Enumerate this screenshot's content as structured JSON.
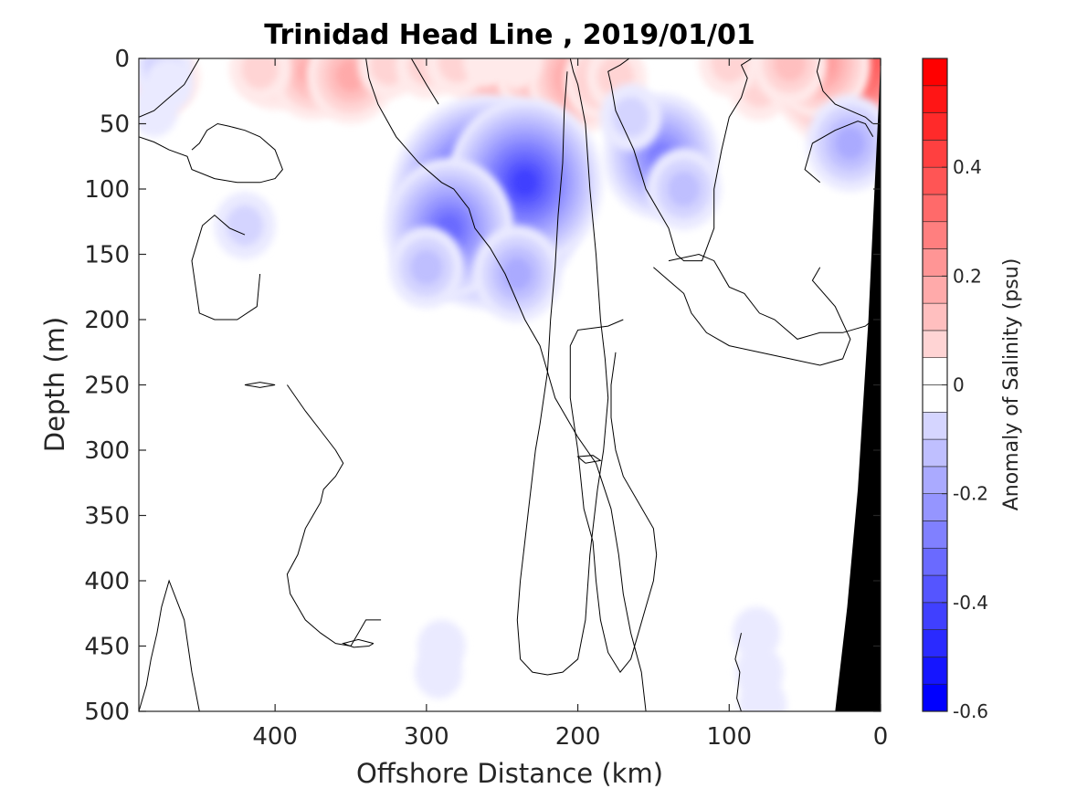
{
  "chart_data": {
    "type": "heatmap",
    "title": "Trinidad Head Line , 2019/01/01",
    "xlabel": "Offshore Distance (km)",
    "ylabel": "Depth (m)",
    "xlim": [
      490,
      0
    ],
    "ylim": [
      500,
      0
    ],
    "x_ticks": [
      "400",
      "300",
      "200",
      "100",
      "0"
    ],
    "y_ticks": [
      "0",
      "50",
      "100",
      "150",
      "200",
      "250",
      "300",
      "350",
      "400",
      "450",
      "500"
    ],
    "colorbar": {
      "label": "Anomaly of Salinity (psu)",
      "range": [
        -0.6,
        0.6
      ],
      "step": 0.05,
      "ticks": [
        "0.4",
        "0.2",
        "0",
        "-0.2",
        "-0.4",
        "-0.6"
      ],
      "positive_color": "#ff0000",
      "negative_color": "#0000ff",
      "zero_color": "#ffffff"
    },
    "features": [
      {
        "kind": "positive",
        "x": 255,
        "y": 10,
        "value": 0.2
      },
      {
        "kind": "positive",
        "x": 225,
        "y": 12,
        "value": 0.2
      },
      {
        "kind": "positive",
        "x": 200,
        "y": 15,
        "value": 0.25
      },
      {
        "kind": "positive",
        "x": 400,
        "y": 8,
        "value": 0.15
      },
      {
        "kind": "positive",
        "x": 375,
        "y": 10,
        "value": 0.18
      },
      {
        "kind": "positive",
        "x": 350,
        "y": 13,
        "value": 0.22
      },
      {
        "kind": "positive",
        "x": 325,
        "y": 5,
        "value": 0.08
      },
      {
        "kind": "positive",
        "x": 300,
        "y": 5,
        "value": 0.08
      },
      {
        "kind": "positive",
        "x": 280,
        "y": 3,
        "value": 0.08
      },
      {
        "kind": "positive",
        "x": 260,
        "y": 2,
        "value": 0.06
      },
      {
        "kind": "positive",
        "x": 240,
        "y": 3,
        "value": 0.06
      },
      {
        "kind": "positive",
        "x": 410,
        "y": 8,
        "value": 0.12
      },
      {
        "kind": "positive",
        "x": 480,
        "y": 18,
        "value": 0.15
      },
      {
        "kind": "positive",
        "x": 470,
        "y": 15,
        "value": 0.12
      },
      {
        "kind": "positive",
        "x": 185,
        "y": 16,
        "value": 0.15
      },
      {
        "kind": "positive",
        "x": 175,
        "y": 14,
        "value": 0.12
      },
      {
        "kind": "positive",
        "x": 45,
        "y": 12,
        "value": 0.2
      },
      {
        "kind": "positive",
        "x": 55,
        "y": 9,
        "value": 0.15
      },
      {
        "kind": "positive",
        "x": 80,
        "y": 22,
        "value": 0.1
      },
      {
        "kind": "positive",
        "x": 100,
        "y": 3,
        "value": 0.08
      },
      {
        "kind": "positive",
        "x": 20,
        "y": 0,
        "value": 0.5
      },
      {
        "kind": "positive",
        "x": 40,
        "y": 4,
        "value": 0.25
      },
      {
        "kind": "positive",
        "x": 60,
        "y": 4,
        "value": 0.15
      },
      {
        "kind": "negative",
        "x": 260,
        "y": 110,
        "value": -0.58
      },
      {
        "kind": "negative",
        "x": 235,
        "y": 95,
        "value": -0.45
      },
      {
        "kind": "negative",
        "x": 285,
        "y": 130,
        "value": -0.35
      },
      {
        "kind": "negative",
        "x": 240,
        "y": 165,
        "value": -0.2
      },
      {
        "kind": "negative",
        "x": 300,
        "y": 160,
        "value": -0.15
      },
      {
        "kind": "negative",
        "x": 145,
        "y": 75,
        "value": -0.32
      },
      {
        "kind": "negative",
        "x": 130,
        "y": 100,
        "value": -0.15
      },
      {
        "kind": "negative",
        "x": 165,
        "y": 45,
        "value": -0.12
      },
      {
        "kind": "negative",
        "x": 20,
        "y": 65,
        "value": -0.2
      },
      {
        "kind": "negative",
        "x": 475,
        "y": 5,
        "value": -0.08
      },
      {
        "kind": "negative",
        "x": 480,
        "y": 40,
        "value": -0.06
      },
      {
        "kind": "negative",
        "x": 470,
        "y": 20,
        "value": -0.05
      },
      {
        "kind": "negative",
        "x": 80,
        "y": 470,
        "value": -0.07
      },
      {
        "kind": "negative",
        "x": 82,
        "y": 440,
        "value": -0.07
      },
      {
        "kind": "negative",
        "x": 78,
        "y": 495,
        "value": -0.07
      },
      {
        "kind": "negative",
        "x": 290,
        "y": 450,
        "value": -0.07
      },
      {
        "kind": "negative",
        "x": 292,
        "y": 470,
        "value": -0.06
      },
      {
        "kind": "negative",
        "x": 420,
        "y": 128,
        "value": -0.08
      }
    ],
    "zero_contours": [
      [
        [
          166,
          0
        ],
        [
          172,
          5
        ],
        [
          180,
          10
        ],
        [
          178,
          20
        ],
        [
          175,
          40
        ],
        [
          163,
          70
        ],
        [
          155,
          100
        ],
        [
          140,
          130
        ],
        [
          135,
          150
        ],
        [
          130,
          155
        ],
        [
          118,
          155
        ],
        [
          110,
          130
        ],
        [
          110,
          100
        ],
        [
          105,
          70
        ],
        [
          100,
          45
        ],
        [
          92,
          30
        ],
        [
          88,
          15
        ],
        [
          92,
          5
        ],
        [
          85,
          0
        ]
      ],
      [
        [
          450,
          0
        ],
        [
          460,
          20
        ],
        [
          470,
          30
        ],
        [
          480,
          40
        ],
        [
          490,
          45
        ]
      ],
      [
        [
          490,
          60
        ],
        [
          480,
          64
        ],
        [
          470,
          70
        ],
        [
          458,
          75
        ],
        [
          455,
          85
        ],
        [
          440,
          92
        ],
        [
          425,
          95
        ],
        [
          410,
          95
        ],
        [
          400,
          92
        ],
        [
          395,
          85
        ],
        [
          400,
          70
        ],
        [
          410,
          60
        ],
        [
          420,
          55
        ],
        [
          430,
          52
        ],
        [
          438,
          50
        ],
        [
          445,
          55
        ],
        [
          450,
          65
        ],
        [
          455,
          70
        ]
      ],
      [
        [
          420,
          135
        ],
        [
          430,
          130
        ],
        [
          440,
          120
        ],
        [
          448,
          128
        ],
        [
          455,
          155
        ],
        [
          450,
          195
        ],
        [
          440,
          200
        ],
        [
          425,
          200
        ],
        [
          412,
          190
        ],
        [
          410,
          165
        ]
      ],
      [
        [
          340,
          0
        ],
        [
          338,
          15
        ],
        [
          332,
          35
        ],
        [
          320,
          60
        ],
        [
          305,
          80
        ],
        [
          290,
          95
        ],
        [
          282,
          100
        ],
        [
          272,
          115
        ],
        [
          268,
          130
        ],
        [
          258,
          145
        ],
        [
          248,
          165
        ],
        [
          235,
          200
        ],
        [
          225,
          220
        ],
        [
          215,
          260
        ],
        [
          200,
          290
        ],
        [
          188,
          310
        ],
        [
          178,
          345
        ],
        [
          173,
          380
        ],
        [
          170,
          410
        ],
        [
          165,
          440
        ],
        [
          158,
          470
        ],
        [
          155,
          500
        ]
      ],
      [
        [
          205,
          0
        ],
        [
          203,
          10
        ],
        [
          200,
          20
        ],
        [
          195,
          50
        ],
        [
          192,
          100
        ],
        [
          188,
          150
        ],
        [
          185,
          200
        ],
        [
          182,
          230
        ],
        [
          180,
          260
        ],
        [
          183,
          300
        ],
        [
          187,
          330
        ],
        [
          190,
          360
        ],
        [
          192,
          380
        ],
        [
          195,
          430
        ],
        [
          200,
          460
        ],
        [
          210,
          470
        ],
        [
          220,
          472
        ],
        [
          230,
          470
        ],
        [
          238,
          460
        ],
        [
          240,
          430
        ],
        [
          238,
          400
        ],
        [
          235,
          370
        ],
        [
          232,
          340
        ],
        [
          228,
          300
        ],
        [
          225,
          280
        ],
        [
          220,
          240
        ],
        [
          218,
          200
        ],
        [
          215,
          160
        ],
        [
          213,
          120
        ],
        [
          210,
          80
        ],
        [
          209,
          40
        ],
        [
          207,
          10
        ]
      ],
      [
        [
          310,
          0
        ],
        [
          305,
          10
        ],
        [
          300,
          20
        ],
        [
          292,
          35
        ]
      ],
      [
        [
          170,
          200
        ],
        [
          180,
          205
        ],
        [
          200,
          208
        ],
        [
          205,
          220
        ],
        [
          205,
          260
        ],
        [
          200,
          300
        ],
        [
          196,
          345
        ],
        [
          190,
          370
        ],
        [
          188,
          400
        ],
        [
          185,
          430
        ],
        [
          180,
          455
        ],
        [
          172,
          470
        ],
        [
          165,
          460
        ],
        [
          160,
          440
        ],
        [
          155,
          420
        ],
        [
          150,
          400
        ],
        [
          148,
          380
        ],
        [
          150,
          360
        ],
        [
          160,
          340
        ],
        [
          170,
          320
        ],
        [
          175,
          300
        ],
        [
          178,
          275
        ],
        [
          178,
          250
        ],
        [
          175,
          225
        ]
      ],
      [
        [
          92,
          500
        ],
        [
          95,
          490
        ],
        [
          93,
          470
        ],
        [
          96,
          460
        ],
        [
          92,
          440
        ]
      ],
      [
        [
          40,
          0
        ],
        [
          42,
          10
        ],
        [
          38,
          25
        ],
        [
          30,
          35
        ],
        [
          20,
          40
        ],
        [
          10,
          45
        ],
        [
          5,
          50
        ]
      ],
      [
        [
          5,
          200
        ],
        [
          10,
          205
        ],
        [
          25,
          210
        ],
        [
          40,
          210
        ],
        [
          55,
          215
        ],
        [
          70,
          200
        ],
        [
          80,
          195
        ],
        [
          90,
          180
        ],
        [
          100,
          175
        ],
        [
          110,
          155
        ],
        [
          120,
          150
        ],
        [
          140,
          155
        ]
      ],
      [
        [
          40,
          160
        ],
        [
          45,
          170
        ],
        [
          30,
          190
        ],
        [
          20,
          215
        ],
        [
          25,
          230
        ],
        [
          40,
          235
        ],
        [
          60,
          230
        ],
        [
          80,
          225
        ],
        [
          100,
          220
        ],
        [
          115,
          210
        ],
        [
          125,
          195
        ],
        [
          130,
          180
        ],
        [
          140,
          170
        ],
        [
          150,
          160
        ]
      ],
      [
        [
          330,
          430
        ],
        [
          340,
          430
        ],
        [
          345,
          440
        ],
        [
          350,
          450
        ],
        [
          360,
          448
        ],
        [
          370,
          440
        ],
        [
          380,
          430
        ],
        [
          385,
          420
        ],
        [
          390,
          410
        ],
        [
          392,
          395
        ],
        [
          385,
          380
        ],
        [
          380,
          360
        ],
        [
          375,
          350
        ],
        [
          370,
          340
        ],
        [
          368,
          330
        ],
        [
          360,
          320
        ],
        [
          355,
          310
        ],
        [
          360,
          300
        ],
        [
          370,
          285
        ],
        [
          380,
          270
        ],
        [
          392,
          250
        ]
      ],
      [
        [
          490,
          500
        ],
        [
          485,
          480
        ],
        [
          482,
          460
        ],
        [
          478,
          440
        ],
        [
          475,
          420
        ],
        [
          470,
          400
        ],
        [
          460,
          430
        ],
        [
          455,
          470
        ],
        [
          450,
          500
        ]
      ],
      [
        [
          335,
          448
        ],
        [
          345,
          445
        ],
        [
          355,
          448
        ],
        [
          348,
          451
        ],
        [
          338,
          450
        ],
        [
          335,
          448
        ]
      ],
      [
        [
          400,
          250
        ],
        [
          410,
          252
        ],
        [
          420,
          250
        ],
        [
          410,
          248
        ],
        [
          400,
          250
        ]
      ],
      [
        [
          195,
          310
        ],
        [
          200,
          305
        ],
        [
          190,
          304
        ],
        [
          185,
          308
        ],
        [
          195,
          310
        ]
      ],
      [
        [
          40,
          95
        ],
        [
          50,
          85
        ],
        [
          45,
          65
        ],
        [
          30,
          55
        ],
        [
          15,
          48
        ],
        [
          10,
          50
        ],
        [
          5,
          60
        ]
      ]
    ],
    "bathymetry_polygon": [
      [
        0,
        0
      ],
      [
        0,
        500
      ],
      [
        30,
        500
      ],
      [
        22,
        420
      ],
      [
        15,
        330
      ],
      [
        8,
        200
      ],
      [
        4,
        100
      ],
      [
        1,
        30
      ]
    ]
  }
}
